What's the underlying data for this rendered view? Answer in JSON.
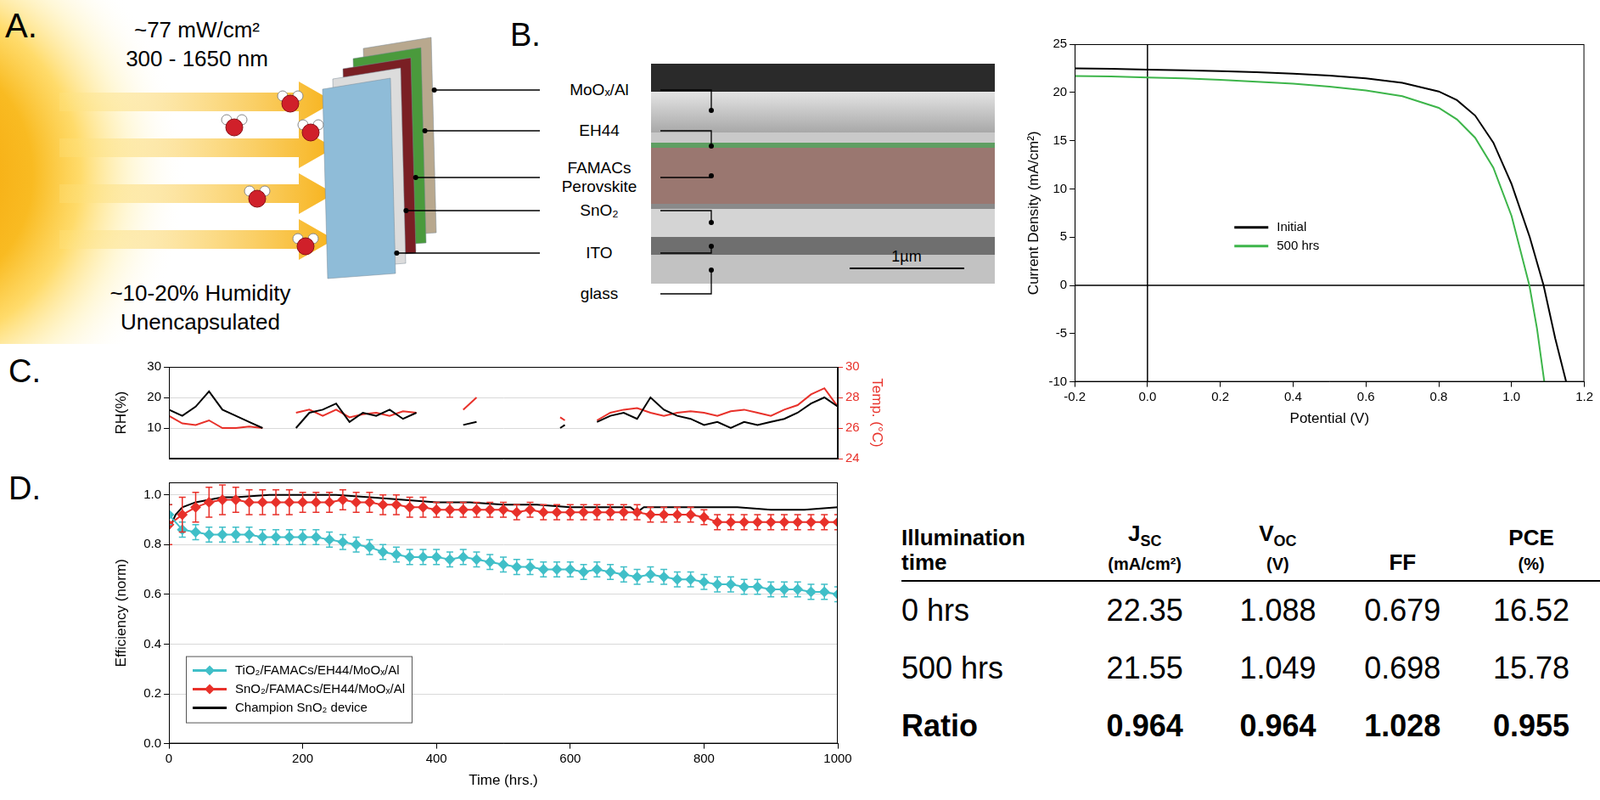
{
  "panel_a": {
    "label": "A.",
    "irradiance": "~77 mW/cm²",
    "wavelength": "300 - 1650 nm",
    "humidity": "~10-20% Humidity",
    "encapsulation": "Unencapsulated"
  },
  "panel_b": {
    "label": "B.",
    "layers": [
      "MoOₓ/Al",
      "EH44",
      "FAMACs Perovskite",
      "SnO₂",
      "ITO",
      "glass"
    ],
    "scale_bar": "1µm"
  },
  "chart_data": [
    {
      "type": "line",
      "x_label": "Potential (V)",
      "y_label": "Current Density (mA/cm²)",
      "xlim": [
        -0.2,
        1.2
      ],
      "xticks": [
        -0.2,
        {
          "value": 0,
          "label": "0.0"
        },
        0.2,
        0.4,
        0.6,
        0.8,
        {
          "value": 1,
          "label": "1.0"
        },
        1.2
      ],
      "ylim": [
        -10,
        25
      ],
      "yticks": [
        -10,
        -5,
        0,
        5,
        10,
        15,
        20,
        25
      ],
      "grid": false,
      "legend": "center left",
      "series": [
        {
          "name": "Initial",
          "color": "#000000",
          "marker": "none",
          "x": [
            -0.2,
            -0.1,
            0,
            0.1,
            0.2,
            0.3,
            0.4,
            0.5,
            0.6,
            0.7,
            0.8,
            0.85,
            0.9,
            0.95,
            1.0,
            1.05,
            1.088,
            1.12,
            1.15
          ],
          "values": [
            22.5,
            22.45,
            22.35,
            22.3,
            22.2,
            22.1,
            21.95,
            21.75,
            21.45,
            21.0,
            20.1,
            19.2,
            17.6,
            14.8,
            10.5,
            5.0,
            0,
            -5.5,
            -10
          ]
        },
        {
          "name": "500 hrs",
          "color": "#3db54a",
          "marker": "none",
          "x": [
            -0.2,
            -0.1,
            0,
            0.1,
            0.2,
            0.3,
            0.4,
            0.5,
            0.6,
            0.7,
            0.8,
            0.85,
            0.9,
            0.95,
            1.0,
            1.049,
            1.07,
            1.09
          ],
          "values": [
            21.7,
            21.65,
            21.55,
            21.45,
            21.3,
            21.1,
            20.9,
            20.6,
            20.2,
            19.6,
            18.4,
            17.2,
            15.3,
            12.2,
            7.2,
            0,
            -4.5,
            -10
          ]
        }
      ]
    },
    {
      "type": "line",
      "panel": "C.",
      "y_label": "RH(%)",
      "y2_label": "Temp. (°C)",
      "xlim": [
        0,
        1000
      ],
      "ylim": [
        0,
        30
      ],
      "yticks": [
        10,
        20,
        30
      ],
      "y2lim": [
        24,
        30
      ],
      "y2ticks": [
        24,
        26,
        28,
        30
      ],
      "grid": "y",
      "tick_labels": "y",
      "x": [
        0,
        20,
        40,
        60,
        80,
        100,
        120,
        140,
        160,
        190,
        210,
        230,
        250,
        270,
        290,
        310,
        330,
        350,
        370,
        400,
        440,
        460,
        480,
        585,
        592,
        610,
        640,
        660,
        680,
        700,
        720,
        740,
        760,
        780,
        800,
        820,
        840,
        860,
        880,
        900,
        920,
        940,
        960,
        980,
        1000
      ],
      "series": [
        {
          "color": "#000000",
          "values": [
            16,
            14,
            17,
            22,
            16,
            14,
            12,
            10,
            null,
            10,
            15,
            16,
            18,
            12,
            15,
            14,
            16,
            13,
            15,
            null,
            11,
            12,
            null,
            10,
            11,
            null,
            12,
            14,
            15,
            13,
            20,
            16,
            14,
            13,
            11,
            12,
            10,
            12,
            11,
            12,
            13,
            15,
            18,
            20,
            17
          ]
        },
        {
          "color": "#e8312a",
          "axis": "y2",
          "values": [
            26.8,
            26.3,
            26.2,
            26.5,
            26.0,
            26.0,
            26.1,
            26.0,
            null,
            27.0,
            27.2,
            26.8,
            27.2,
            26.7,
            26.9,
            27.0,
            26.8,
            27.1,
            27.0,
            null,
            27.2,
            28.0,
            null,
            26.7,
            26.5,
            null,
            26.5,
            27.0,
            27.2,
            27.3,
            27.0,
            26.8,
            27.0,
            27.1,
            27.0,
            26.8,
            27.1,
            27.2,
            27.0,
            26.8,
            27.2,
            27.5,
            28.2,
            28.6,
            27.4
          ]
        }
      ]
    },
    {
      "type": "line",
      "panel": "D.",
      "x_label": "Time (hrs.)",
      "y_label": "Efficiency (norm)",
      "xlim": [
        0,
        1000
      ],
      "xticks": [
        0,
        200,
        400,
        600,
        800,
        1000
      ],
      "ylim": [
        0,
        1.05
      ],
      "yticks": [
        {
          "value": 0,
          "label": "0.0"
        },
        0.2,
        0.4,
        0.6,
        0.8,
        {
          "value": 1,
          "label": "1.0"
        }
      ],
      "grid": "y",
      "legend": "lower left",
      "series": [
        {
          "name": "TiO₂/FAMACs/EH44/MoOₓ/Al",
          "color": "#40bfc8",
          "marker": "diamond",
          "x": [
            0,
            20,
            40,
            60,
            80,
            100,
            120,
            140,
            160,
            180,
            200,
            220,
            240,
            260,
            280,
            300,
            320,
            340,
            360,
            380,
            400,
            420,
            440,
            460,
            480,
            500,
            520,
            540,
            560,
            580,
            600,
            620,
            640,
            660,
            680,
            700,
            720,
            740,
            760,
            780,
            800,
            820,
            840,
            860,
            880,
            900,
            920,
            940,
            960,
            980,
            1000
          ],
          "values": [
            0.92,
            0.86,
            0.85,
            0.84,
            0.84,
            0.84,
            0.84,
            0.83,
            0.83,
            0.83,
            0.83,
            0.83,
            0.82,
            0.81,
            0.8,
            0.79,
            0.77,
            0.76,
            0.75,
            0.75,
            0.75,
            0.74,
            0.75,
            0.74,
            0.73,
            0.72,
            0.71,
            0.71,
            0.7,
            0.7,
            0.7,
            0.69,
            0.7,
            0.69,
            0.68,
            0.67,
            0.68,
            0.67,
            0.66,
            0.66,
            0.65,
            0.64,
            0.64,
            0.63,
            0.63,
            0.62,
            0.62,
            0.62,
            0.61,
            0.61,
            0.6
          ],
          "errors": [
            0.04,
            0.03,
            0.03,
            0.03,
            0.03,
            0.03,
            0.03,
            0.03,
            0.03,
            0.03,
            0.03,
            0.03,
            0.03,
            0.03,
            0.03,
            0.03,
            0.03,
            0.03,
            0.03,
            0.03,
            0.03,
            0.03,
            0.03,
            0.03,
            0.03,
            0.03,
            0.03,
            0.03,
            0.03,
            0.03,
            0.03,
            0.03,
            0.03,
            0.03,
            0.03,
            0.03,
            0.03,
            0.03,
            0.03,
            0.03,
            0.03,
            0.03,
            0.03,
            0.03,
            0.03,
            0.03,
            0.03,
            0.03,
            0.03,
            0.03,
            0.03
          ]
        },
        {
          "name": "SnO₂/FAMACs/EH44/MoOₓ/Al",
          "color": "#e8312a",
          "marker": "diamond",
          "x": [
            0,
            20,
            40,
            60,
            80,
            100,
            120,
            140,
            160,
            180,
            200,
            220,
            240,
            260,
            280,
            300,
            320,
            340,
            360,
            380,
            400,
            420,
            440,
            460,
            480,
            500,
            520,
            540,
            560,
            580,
            600,
            620,
            640,
            660,
            680,
            700,
            720,
            740,
            760,
            780,
            800,
            820,
            840,
            860,
            880,
            900,
            920,
            940,
            960,
            980,
            1000
          ],
          "values": [
            0.88,
            0.92,
            0.95,
            0.97,
            0.98,
            0.98,
            0.97,
            0.97,
            0.97,
            0.97,
            0.97,
            0.97,
            0.97,
            0.98,
            0.97,
            0.97,
            0.96,
            0.96,
            0.95,
            0.95,
            0.94,
            0.94,
            0.94,
            0.94,
            0.94,
            0.94,
            0.93,
            0.94,
            0.93,
            0.93,
            0.93,
            0.93,
            0.93,
            0.93,
            0.93,
            0.93,
            0.92,
            0.92,
            0.92,
            0.92,
            0.91,
            0.89,
            0.89,
            0.89,
            0.89,
            0.89,
            0.89,
            0.89,
            0.89,
            0.89,
            0.89
          ],
          "errors": [
            0.08,
            0.07,
            0.06,
            0.06,
            0.06,
            0.05,
            0.05,
            0.05,
            0.05,
            0.05,
            0.04,
            0.04,
            0.04,
            0.04,
            0.04,
            0.04,
            0.04,
            0.04,
            0.04,
            0.04,
            0.03,
            0.03,
            0.03,
            0.03,
            0.03,
            0.03,
            0.03,
            0.03,
            0.03,
            0.03,
            0.03,
            0.03,
            0.03,
            0.03,
            0.03,
            0.03,
            0.03,
            0.03,
            0.03,
            0.03,
            0.03,
            0.03,
            0.03,
            0.03,
            0.03,
            0.03,
            0.03,
            0.03,
            0.03,
            0.03,
            0.03
          ]
        },
        {
          "name": "Champion SnO₂ device",
          "color": "#000000",
          "marker": "none",
          "x": [
            0,
            10,
            20,
            40,
            60,
            80,
            100,
            150,
            200,
            250,
            300,
            350,
            400,
            450,
            500,
            550,
            600,
            650,
            690,
            700,
            710,
            750,
            800,
            850,
            900,
            950,
            1000
          ],
          "values": [
            0.86,
            0.92,
            0.95,
            0.97,
            0.98,
            0.99,
            0.99,
            1.0,
            1.0,
            1.0,
            0.99,
            0.98,
            0.97,
            0.97,
            0.96,
            0.96,
            0.95,
            0.95,
            0.95,
            0.93,
            0.95,
            0.95,
            0.95,
            0.95,
            0.94,
            0.94,
            0.95
          ]
        }
      ]
    }
  ],
  "table": {
    "header": [
      {
        "text": "Illumination time"
      },
      {
        "text": "J",
        "subscript": "SC",
        "unit": "(mA/cm²)"
      },
      {
        "text": "V",
        "subscript": "OC",
        "unit": "(V)"
      },
      {
        "text": "FF"
      },
      {
        "text": "PCE",
        "unit": "(%)"
      }
    ],
    "rows": [
      [
        "0 hrs",
        "22.35",
        "1.088",
        "0.679",
        "16.52"
      ],
      [
        "500 hrs",
        "21.55",
        "1.049",
        "0.698",
        "15.78"
      ],
      [
        "Ratio",
        "0.964",
        "0.964",
        "1.028",
        "0.955"
      ]
    ]
  }
}
